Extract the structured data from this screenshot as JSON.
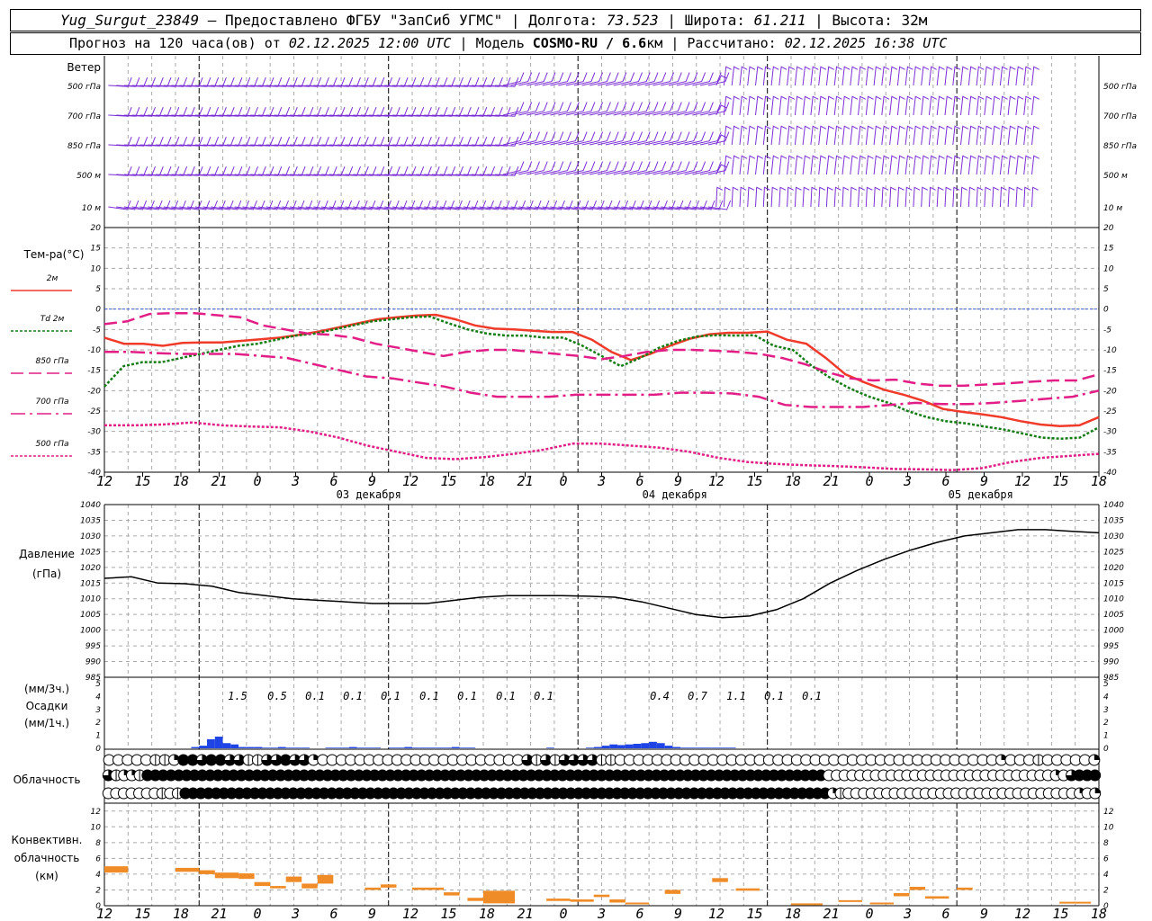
{
  "header": {
    "station": "Yug_Surgut_23849",
    "provider": "— Предоставлено ФГБУ \"ЗапСиб УГМС\"",
    "lon_label": "Долгота:",
    "lon": "73.523",
    "lat_label": "Широта:",
    "lat": "61.211",
    "alt_label": "Высота:",
    "alt": "32м",
    "forecast_label": "Прогноз на 120 часа(ов) от",
    "forecast_time": "02.12.2025 12:00 UTC",
    "model_label": "Модель",
    "model": "COSMO-RU / 6.6",
    "model_unit": "км",
    "calc_label": "Рассчитано:",
    "calc_time": "02.12.2025 16:38 UTC"
  },
  "chart_data": {
    "type": "line",
    "x_ticks": [
      "12",
      "15",
      "18",
      "21",
      "0",
      "3",
      "6",
      "9",
      "12",
      "15",
      "18",
      "21",
      "0",
      "3",
      "6",
      "9",
      "12",
      "15",
      "18",
      "21",
      "0",
      "3",
      "6",
      "9",
      "12",
      "15",
      "18"
    ],
    "days": [
      "03 декабря",
      "04 декабря",
      "05 декабря"
    ],
    "wind": {
      "title": "Ветер",
      "levels": [
        "500 гПа",
        "700 гПа",
        "850 гПа",
        "500 м",
        "10 м"
      ],
      "color": "#7a2fd6"
    },
    "temperature": {
      "ylabel": "Тем-ра(°C)",
      "ylim": [
        -40,
        20
      ],
      "yticks": [
        20,
        15,
        10,
        5,
        0,
        -5,
        -10,
        -15,
        -20,
        -25,
        -30,
        -35,
        -40
      ],
      "series": [
        {
          "name": "2м",
          "color": "#f03a2a",
          "style": "solid",
          "values": [
            -7,
            -8.5,
            -8.5,
            -9,
            -8.3,
            -8.2,
            -8.2,
            -7.8,
            -7.4,
            -7,
            -6.3,
            -5.5,
            -4.5,
            -3.5,
            -2.5,
            -2,
            -1.6,
            -1.4,
            -2.5,
            -4,
            -4.8,
            -5,
            -5.3,
            -5.6,
            -5.6,
            -7.5,
            -10.5,
            -12.5,
            -11,
            -9,
            -7.3,
            -6.2,
            -5.8,
            -5.8,
            -5.5,
            -7.5,
            -8.5,
            -12,
            -16,
            -18,
            -19.8,
            -21,
            -22.5,
            -24.5,
            -25.2,
            -25.8,
            -26.5,
            -27.5,
            -28.3,
            -28.7,
            -28.5,
            -26.5
          ]
        },
        {
          "name": "Td 2м",
          "color": "#157d15",
          "style": "dot",
          "values": [
            -19,
            -14,
            -13,
            -13,
            -12,
            -11,
            -10,
            -9,
            -8.5,
            -7.5,
            -6.5,
            -6,
            -5,
            -4,
            -3,
            -2.5,
            -2,
            -1.8,
            -3.5,
            -5,
            -6,
            -6.5,
            -6.5,
            -7,
            -7,
            -9,
            -11.5,
            -14,
            -12,
            -9.5,
            -7.8,
            -6.7,
            -6.4,
            -6.5,
            -6.4,
            -9,
            -10,
            -14,
            -17,
            -19.5,
            -21.5,
            -23,
            -25,
            -26.5,
            -27.5,
            -28,
            -28.8,
            -29.5,
            -30.5,
            -31.5,
            -31.8,
            -31.5,
            -29
          ]
        },
        {
          "name": "850 гПа",
          "color": "#e21e86",
          "style": "dash",
          "values": [
            -3.7,
            -3,
            -1.2,
            -1,
            -1,
            -1.5,
            -2,
            -4,
            -5,
            -6,
            -6.3,
            -7,
            -8.5,
            -9.5,
            -10.5,
            -11.5,
            -10.5,
            -10,
            -10,
            -10.5,
            -11,
            -11.5,
            -12.3,
            -11.5,
            -10.5,
            -10,
            -10,
            -10.2,
            -10.5,
            -11,
            -12,
            -13.5,
            -15.5,
            -17,
            -17.5,
            -17.3,
            -18.3,
            -18.8,
            -18.8,
            -18.5,
            -18.2,
            -17.8,
            -17.5,
            -17.5,
            -16
          ]
        },
        {
          "name": "700 гПа",
          "color": "#e21e86",
          "style": "dashdot",
          "values": [
            -10.5,
            -10.5,
            -10.8,
            -11,
            -11,
            -11,
            -11.5,
            -12,
            -13.5,
            -15,
            -16.5,
            -17,
            -18,
            -19,
            -20.5,
            -21.5,
            -21.5,
            -21.5,
            -21,
            -21,
            -21,
            -21,
            -20.5,
            -20.5,
            -20.7,
            -21.5,
            -23.5,
            -24,
            -24,
            -24,
            -23.5,
            -23,
            -23.3,
            -23.3,
            -23,
            -22.5,
            -22,
            -21.5,
            -20
          ]
        },
        {
          "name": "500 гПа",
          "color": "#e21e86",
          "style": "dot",
          "values": [
            -28.5,
            -28.5,
            -28.3,
            -27.8,
            -28.5,
            -28.8,
            -29,
            -30,
            -31.5,
            -33.5,
            -35,
            -36.5,
            -36.8,
            -36.3,
            -35.5,
            -34.5,
            -33,
            -33,
            -33.5,
            -34,
            -35,
            -36.5,
            -37.5,
            -38,
            -38.3,
            -38.5,
            -38.8,
            -39.2,
            -39.3,
            -39.5,
            -39,
            -37.5,
            -36.5,
            -36,
            -35.5
          ]
        }
      ]
    },
    "pressure": {
      "ylabel": "Давление",
      "unit": "(гПа)",
      "ylim": [
        985,
        1040
      ],
      "yticks": [
        1040,
        1035,
        1030,
        1025,
        1020,
        1015,
        1010,
        1005,
        1000,
        995,
        990,
        985
      ],
      "values": [
        1016.5,
        1017,
        1015,
        1014.8,
        1014,
        1012,
        1011,
        1010,
        1009.5,
        1009,
        1008.5,
        1008.5,
        1008.5,
        1009.5,
        1010.5,
        1011,
        1011,
        1011,
        1010.8,
        1010.5,
        1009,
        1007,
        1005,
        1004,
        1004.5,
        1006.5,
        1010,
        1015,
        1019,
        1022.5,
        1025.5,
        1028,
        1030,
        1031,
        1032,
        1032,
        1031.5,
        1031
      ],
      "color": "#000000"
    },
    "precipitation": {
      "ylabel_3h": "(мм/3ч.)",
      "ylabel": "Осадки",
      "ylabel_1h": "(мм/1ч.)",
      "ylim": [
        0,
        5
      ],
      "yticks": [
        5,
        4,
        3,
        2,
        1,
        0
      ],
      "totals_3h": [
        {
          "hour": "0",
          "value": "1.5"
        },
        {
          "hour": "3",
          "value": "0.5"
        },
        {
          "hour": "6",
          "value": "0.1"
        },
        {
          "hour": "9",
          "value": "0.1"
        },
        {
          "hour": "12",
          "value": "0.1"
        },
        {
          "hour": "15",
          "value": "0.1"
        },
        {
          "hour": "18",
          "value": "0.1"
        },
        {
          "hour": "21",
          "value": "0.1"
        },
        {
          "hour": "0",
          "value": "0.1"
        },
        {
          "hour": "9",
          "value": "0.4"
        },
        {
          "hour": "12",
          "value": "0.7"
        },
        {
          "hour": "15",
          "value": "1.1"
        },
        {
          "hour": "18",
          "value": "0.1"
        },
        {
          "hour": "21",
          "value": "0.1"
        }
      ],
      "hourly_mm": [
        0,
        0,
        0,
        0,
        0,
        0,
        0,
        0,
        0,
        0,
        0,
        0.1,
        0.2,
        0.7,
        0.9,
        0.4,
        0.3,
        0.1,
        0.1,
        0.1,
        0.05,
        0.05,
        0.1,
        0.05,
        0.05,
        0.05,
        0,
        0,
        0.05,
        0.05,
        0.05,
        0.1,
        0.05,
        0.05,
        0.05,
        0,
        0.05,
        0.05,
        0.1,
        0.05,
        0.05,
        0.05,
        0.05,
        0.05,
        0.1,
        0.05,
        0.05,
        0,
        0,
        0,
        0,
        0,
        0,
        0,
        0,
        0,
        0.05,
        0,
        0,
        0,
        0,
        0.05,
        0.1,
        0.2,
        0.3,
        0.25,
        0.3,
        0.35,
        0.4,
        0.5,
        0.4,
        0.2,
        0.1,
        0.05,
        0.05,
        0.05,
        0.05,
        0.05,
        0.05,
        0.05,
        0,
        0,
        0,
        0,
        0,
        0,
        0,
        0,
        0,
        0,
        0,
        0,
        0,
        0,
        0,
        0,
        0,
        0,
        0,
        0,
        0,
        0,
        0,
        0,
        0,
        0,
        0,
        0,
        0,
        0,
        0,
        0,
        0,
        0,
        0,
        0,
        0,
        0,
        0,
        0,
        0
      ],
      "color": "#1e44e6"
    },
    "cloudiness": {
      "ylabel": "Облачность",
      "rows": [
        [
          0,
          0,
          0,
          0,
          0,
          1,
          1,
          2,
          4,
          4,
          3,
          4,
          4,
          3,
          3,
          1,
          1,
          3,
          3,
          4,
          3,
          3,
          2,
          0,
          0,
          0,
          0,
          0,
          0,
          0,
          0,
          0,
          0,
          0,
          0,
          0,
          0,
          0,
          0,
          0,
          0,
          0,
          0,
          0,
          0,
          3,
          1,
          3,
          1,
          3,
          3,
          3,
          3,
          1,
          1,
          0,
          0,
          0,
          0,
          0,
          0,
          0,
          0,
          0,
          0,
          0,
          0,
          0,
          0,
          0,
          0,
          0,
          0,
          0,
          0,
          0,
          0,
          0,
          0,
          0,
          0,
          0,
          0,
          0,
          0,
          0,
          0,
          0,
          0,
          0,
          0,
          0,
          0,
          0,
          0,
          0,
          2,
          0,
          0,
          0,
          1,
          0,
          0,
          0,
          0,
          0,
          2
        ],
        [
          3,
          1,
          2,
          2,
          1,
          4,
          4,
          4,
          4,
          4,
          4,
          4,
          4,
          4,
          4,
          4,
          4,
          4,
          4,
          4,
          4,
          4,
          4,
          4,
          4,
          4,
          4,
          4,
          4,
          4,
          4,
          4,
          4,
          4,
          4,
          4,
          4,
          4,
          4,
          4,
          4,
          4,
          4,
          4,
          4,
          4,
          4,
          4,
          4,
          4,
          4,
          4,
          4,
          4,
          4,
          4,
          4,
          4,
          4,
          4,
          4,
          4,
          4,
          4,
          4,
          4,
          4,
          4,
          4,
          4,
          4,
          4,
          4,
          4,
          4,
          4,
          4,
          4,
          4,
          4,
          4,
          4,
          4,
          4,
          4,
          4,
          4,
          4,
          4,
          4,
          4,
          4,
          0,
          0,
          0,
          0,
          0,
          0,
          0,
          0,
          0,
          0,
          0,
          0,
          0,
          0,
          0,
          0,
          0,
          0,
          0,
          0,
          0,
          0,
          0,
          0,
          0,
          0,
          0,
          0,
          0,
          2,
          0,
          3,
          4,
          4,
          4
        ],
        [
          0,
          0,
          0,
          0,
          0,
          0,
          0,
          1,
          0,
          1,
          4,
          4,
          4,
          4,
          4,
          4,
          4,
          4,
          4,
          4,
          4,
          4,
          4,
          4,
          4,
          4,
          4,
          4,
          4,
          4,
          4,
          4,
          4,
          4,
          4,
          4,
          4,
          4,
          4,
          4,
          4,
          4,
          4,
          4,
          4,
          4,
          4,
          4,
          4,
          4,
          4,
          4,
          4,
          4,
          4,
          4,
          4,
          4,
          4,
          4,
          4,
          4,
          4,
          4,
          4,
          4,
          4,
          4,
          4,
          4,
          4,
          4,
          4,
          4,
          4,
          4,
          4,
          4,
          4,
          4,
          4,
          4,
          4,
          4,
          4,
          4,
          4,
          4,
          4,
          4,
          4,
          4,
          4,
          4,
          2,
          1,
          0,
          0,
          0,
          0,
          0,
          0,
          0,
          0,
          0,
          0,
          0,
          0,
          0,
          0,
          0,
          0,
          0,
          0,
          0,
          0,
          0,
          0,
          0,
          0,
          0,
          0,
          0,
          0,
          0,
          0,
          2,
          0,
          2
        ]
      ]
    },
    "convective": {
      "ylabel": "Конвективн.",
      "ylabel2": "облачность",
      "unit": "(км)",
      "ylim": [
        0,
        13
      ],
      "yticks": [
        12,
        10,
        8,
        6,
        4,
        2,
        0
      ],
      "color": "#f08c28",
      "segments": [
        {
          "x": 0,
          "w": 3,
          "lo": 4.2,
          "hi": 5.0
        },
        {
          "x": 9,
          "w": 3,
          "lo": 4.3,
          "hi": 4.8
        },
        {
          "x": 12,
          "w": 2,
          "lo": 4.0,
          "hi": 4.5
        },
        {
          "x": 14,
          "w": 3,
          "lo": 3.5,
          "hi": 4.2
        },
        {
          "x": 17,
          "w": 2,
          "lo": 3.4,
          "hi": 4.1
        },
        {
          "x": 19,
          "w": 2,
          "lo": 2.5,
          "hi": 3.0
        },
        {
          "x": 21,
          "w": 2,
          "lo": 2.2,
          "hi": 2.5
        },
        {
          "x": 23,
          "w": 2,
          "lo": 3.0,
          "hi": 3.7
        },
        {
          "x": 25,
          "w": 2,
          "lo": 2.2,
          "hi": 2.8
        },
        {
          "x": 27,
          "w": 2,
          "lo": 2.8,
          "hi": 3.9
        },
        {
          "x": 33,
          "w": 2,
          "lo": 2.0,
          "hi": 2.3
        },
        {
          "x": 35,
          "w": 2,
          "lo": 2.3,
          "hi": 2.7
        },
        {
          "x": 39,
          "w": 4,
          "lo": 2.0,
          "hi": 2.3
        },
        {
          "x": 43,
          "w": 2,
          "lo": 1.3,
          "hi": 1.7
        },
        {
          "x": 46,
          "w": 2,
          "lo": 0.6,
          "hi": 1.0
        },
        {
          "x": 48,
          "w": 2,
          "lo": 0.3,
          "hi": 1.9
        },
        {
          "x": 50,
          "w": 2,
          "lo": 0.3,
          "hi": 1.9
        },
        {
          "x": 56,
          "w": 3,
          "lo": 0.6,
          "hi": 0.9
        },
        {
          "x": 59,
          "w": 3,
          "lo": 0.5,
          "hi": 0.8
        },
        {
          "x": 62,
          "w": 2,
          "lo": 1.1,
          "hi": 1.4
        },
        {
          "x": 64,
          "w": 2,
          "lo": 0.4,
          "hi": 0.8
        },
        {
          "x": 66,
          "w": 3,
          "lo": 0.2,
          "hi": 0.4
        },
        {
          "x": 71,
          "w": 2,
          "lo": 1.5,
          "hi": 2.0
        },
        {
          "x": 77,
          "w": 2,
          "lo": 3.0,
          "hi": 3.5
        },
        {
          "x": 80,
          "w": 3,
          "lo": 1.9,
          "hi": 2.2
        },
        {
          "x": 87,
          "w": 4,
          "lo": 0.1,
          "hi": 0.3
        },
        {
          "x": 93,
          "w": 3,
          "lo": 0.5,
          "hi": 0.7
        },
        {
          "x": 97,
          "w": 3,
          "lo": 0.2,
          "hi": 0.4
        },
        {
          "x": 100,
          "w": 2,
          "lo": 1.2,
          "hi": 1.6
        },
        {
          "x": 102,
          "w": 2,
          "lo": 2.0,
          "hi": 2.4
        },
        {
          "x": 104,
          "w": 3,
          "lo": 0.9,
          "hi": 1.2
        },
        {
          "x": 108,
          "w": 2,
          "lo": 2.0,
          "hi": 2.3
        },
        {
          "x": 121,
          "w": 4,
          "lo": 0.3,
          "hi": 0.5
        }
      ]
    }
  }
}
